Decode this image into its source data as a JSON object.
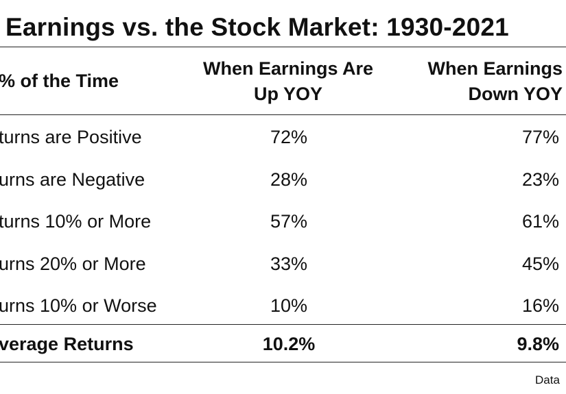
{
  "chart_data": {
    "type": "table",
    "title": "Earnings vs. the Stock Market: 1930-2021",
    "columns": [
      "% of the Time",
      "When Earnings Are Up YOY",
      "When Earnings Down YOY"
    ],
    "header": {
      "col0": "% of the Time",
      "col1_line1": "When Earnings Are",
      "col1_line2": "Up YOY",
      "col2_line1": "When Earnings",
      "col2_line2": "Down YOY"
    },
    "rows": [
      {
        "label": "turns are Positive",
        "up": "72%",
        "down": "77%"
      },
      {
        "label": "urns are Negative",
        "up": "28%",
        "down": "23%"
      },
      {
        "label": "turns 10% or More",
        "up": "57%",
        "down": "61%"
      },
      {
        "label": "urns 20% or More",
        "up": "33%",
        "down": "45%"
      },
      {
        "label": "urns 10% or Worse",
        "up": "10%",
        "down": "16%"
      }
    ],
    "summary": {
      "label": "verage Returns",
      "up": "10.2%",
      "down": "9.8%"
    },
    "source": "Data"
  }
}
